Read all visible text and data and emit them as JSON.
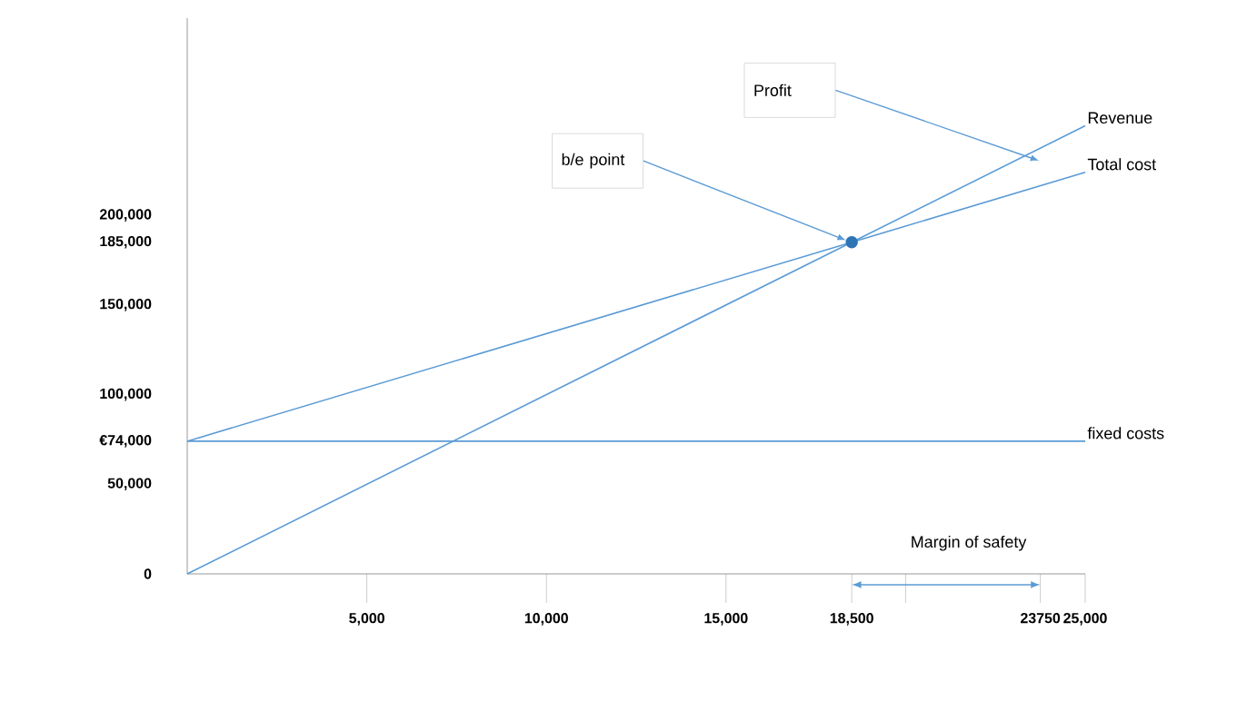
{
  "chart_data": {
    "type": "line",
    "series": [
      {
        "name": "Revenue",
        "color": "#5b9bd5",
        "x": [
          0,
          25000
        ],
        "values": [
          0,
          250000
        ]
      },
      {
        "name": "Total cost",
        "color": "#5b9bd5",
        "x": [
          0,
          25000
        ],
        "values": [
          74000,
          224000
        ]
      },
      {
        "name": "fixed costs",
        "color": "#5b9bd5",
        "x": [
          0,
          25000
        ],
        "values": [
          74000,
          74000
        ]
      },
      {
        "type": "scatter",
        "color": "#2e75b6",
        "x": [
          18500
        ],
        "values": [
          185000
        ]
      }
    ],
    "xlim": [
      0,
      25000
    ],
    "ylim": [
      0,
      310000
    ],
    "xticks": [
      {
        "value": 5000,
        "label": "5,000"
      },
      {
        "value": 10000,
        "label": "10,000"
      },
      {
        "value": 15000,
        "label": "15,000"
      },
      {
        "value": 18500,
        "label": "18,500"
      },
      {
        "value": 20000,
        "label": null
      },
      {
        "value": 23750,
        "label": "23750"
      },
      {
        "value": 25000,
        "label": "25,000"
      }
    ],
    "yticks": [
      0,
      {
        "value": 50000,
        "label": "50,000"
      },
      {
        "value": 74000,
        "label": "€74,000"
      },
      {
        "value": 100000,
        "label": "100,000"
      },
      {
        "value": 150000,
        "label": "150,000"
      },
      {
        "value": 185000,
        "label": "185,000"
      },
      {
        "value": 200000,
        "label": "200,000"
      }
    ],
    "annotations": [
      "Profit",
      {
        "text": "b/e point",
        "x": 18500,
        "y": 185000
      },
      "Margin of safety"
    ]
  }
}
